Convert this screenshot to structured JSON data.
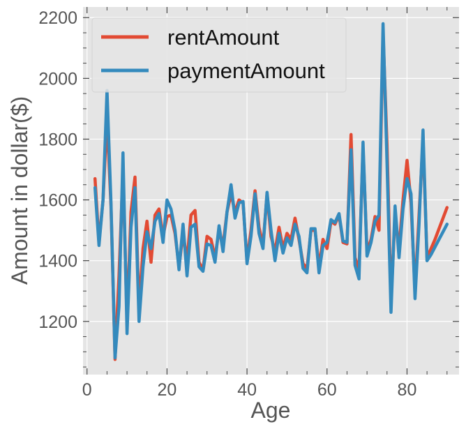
{
  "chart_data": {
    "type": "line",
    "title": "",
    "xlabel": "Age",
    "ylabel": "Amount in dollar($)",
    "xlim": [
      -1,
      93
    ],
    "ylim": [
      1025,
      2235
    ],
    "grid": true,
    "legend_placement": "top-left",
    "x_ticks": [
      "0",
      "20",
      "40",
      "60",
      "80"
    ],
    "y_ticks": [
      "1200",
      "1400",
      "1600",
      "1800",
      "2000",
      "2200"
    ],
    "colors": {
      "background": "#e5e5e5",
      "grid": "#ffffff",
      "rentAmount": "#e24a33",
      "paymentAmount": "#348abd",
      "text": "#555555"
    },
    "x": [
      2,
      3,
      4,
      5,
      6,
      7,
      8,
      9,
      10,
      11,
      12,
      13,
      14,
      15,
      16,
      17,
      18,
      19,
      20,
      21,
      22,
      23,
      24,
      25,
      26,
      27,
      28,
      29,
      30,
      31,
      32,
      33,
      34,
      35,
      36,
      37,
      38,
      39,
      40,
      41,
      42,
      43,
      44,
      45,
      46,
      47,
      48,
      49,
      50,
      51,
      52,
      53,
      54,
      55,
      56,
      57,
      58,
      59,
      60,
      61,
      62,
      63,
      64,
      65,
      66,
      67,
      68,
      69,
      70,
      71,
      72,
      73,
      74,
      75,
      76,
      77,
      78,
      79,
      80,
      81,
      82,
      83,
      84,
      85,
      86,
      87,
      88,
      89,
      90
    ],
    "series": [
      {
        "name": "rentAmount",
        "values": [
          1670,
          1460,
          1600,
          1870,
          1580,
          1075,
          1350,
          1700,
          1200,
          1560,
          1675,
          1240,
          1440,
          1530,
          1395,
          1550,
          1570,
          1480,
          1545,
          1550,
          1490,
          1380,
          1490,
          1400,
          1550,
          1565,
          1395,
          1370,
          1480,
          1470,
          1410,
          1500,
          1450,
          1560,
          1620,
          1560,
          1600,
          1590,
          1400,
          1500,
          1630,
          1510,
          1450,
          1620,
          1480,
          1430,
          1510,
          1440,
          1490,
          1470,
          1540,
          1470,
          1390,
          1375,
          1500,
          1500,
          1380,
          1470,
          1440,
          1530,
          1520,
          1550,
          1460,
          1455,
          1815,
          1410,
          1370,
          1770,
          1430,
          1470,
          1545,
          1500,
          2150,
          1780,
          1270,
          1545,
          1440,
          1600,
          1730,
          1590,
          1300,
          1550,
          1800,
          1410,
          1440,
          1470,
          1505,
          1540,
          1575
        ]
      },
      {
        "name": "paymentAmount",
        "values": [
          1640,
          1450,
          1600,
          1960,
          1590,
          1080,
          1250,
          1755,
          1160,
          1510,
          1640,
          1200,
          1380,
          1495,
          1440,
          1530,
          1555,
          1460,
          1600,
          1570,
          1500,
          1370,
          1520,
          1350,
          1510,
          1520,
          1380,
          1365,
          1455,
          1450,
          1395,
          1515,
          1430,
          1560,
          1650,
          1540,
          1590,
          1595,
          1390,
          1480,
          1620,
          1490,
          1440,
          1625,
          1500,
          1400,
          1490,
          1425,
          1475,
          1450,
          1520,
          1480,
          1375,
          1360,
          1505,
          1505,
          1360,
          1450,
          1460,
          1535,
          1525,
          1555,
          1465,
          1460,
          1765,
          1385,
          1340,
          1790,
          1415,
          1460,
          1530,
          1550,
          2180,
          1720,
          1230,
          1580,
          1410,
          1570,
          1670,
          1620,
          1275,
          1520,
          1830,
          1400,
          1420,
          1445,
          1470,
          1495,
          1520
        ]
      }
    ]
  }
}
